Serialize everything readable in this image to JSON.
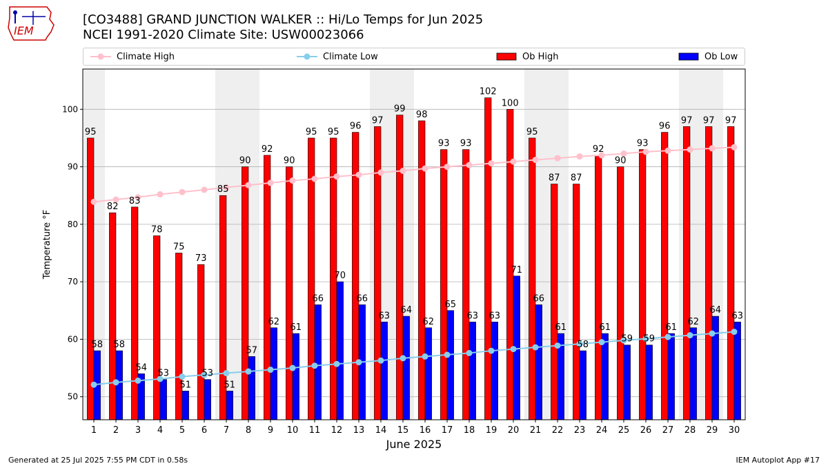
{
  "header": {
    "title_line1": "[CO3488] GRAND JUNCTION WALKER :: Hi/Lo Temps for Jun 2025",
    "title_line2": "NCEI 1991-2020 Climate Site: USW00023066",
    "logo_text": "IEM"
  },
  "legend": {
    "climate_high": "Climate High",
    "climate_low": "Climate Low",
    "ob_high": "Ob High",
    "ob_low": "Ob Low"
  },
  "footer": {
    "generated": "Generated at 25 Jul 2025 7:55 PM CDT in 0.58s",
    "app": "IEM Autoplot App #17"
  },
  "colors": {
    "ob_high": "#ff0000",
    "ob_low": "#0000ff",
    "climate_high": "#ffc0cb",
    "climate_low": "#87ceeb",
    "weekend_band": "#efefef",
    "grid": "#b0b0b0"
  },
  "chart_data": {
    "type": "bar",
    "title": "[CO3488] GRAND JUNCTION WALKER :: Hi/Lo Temps for Jun 2025",
    "subtitle": "NCEI 1991-2020 Climate Site: USW00023066",
    "xlabel": "June 2025",
    "ylabel": "Temperature °F",
    "ylim": [
      46,
      107
    ],
    "yticks": [
      50,
      60,
      70,
      80,
      90,
      100
    ],
    "grid": true,
    "legend_position": "top",
    "categories": [
      "1",
      "2",
      "3",
      "4",
      "5",
      "6",
      "7",
      "8",
      "9",
      "10",
      "11",
      "12",
      "13",
      "14",
      "15",
      "16",
      "17",
      "18",
      "19",
      "20",
      "21",
      "22",
      "23",
      "24",
      "25",
      "26",
      "27",
      "28",
      "29",
      "30"
    ],
    "shaded_days": [
      "1",
      "7",
      "8",
      "14",
      "15",
      "21",
      "22",
      "28",
      "29"
    ],
    "series": [
      {
        "name": "Ob High",
        "kind": "bar",
        "values": [
          95,
          82,
          83,
          78,
          75,
          73,
          85,
          90,
          92,
          90,
          95,
          95,
          96,
          97,
          99,
          98,
          93,
          93,
          102,
          100,
          95,
          87,
          87,
          92,
          90,
          93,
          96,
          97,
          97,
          97
        ]
      },
      {
        "name": "Ob Low",
        "kind": "bar",
        "values": [
          58,
          58,
          54,
          53,
          51,
          53,
          51,
          57,
          62,
          61,
          66,
          70,
          66,
          63,
          64,
          62,
          65,
          63,
          63,
          71,
          66,
          61,
          58,
          61,
          59,
          59,
          61,
          62,
          64,
          63
        ]
      },
      {
        "name": "Climate High",
        "kind": "line",
        "values": [
          83.9,
          84.3,
          84.7,
          85.2,
          85.6,
          86.0,
          86.4,
          86.8,
          87.2,
          87.6,
          87.9,
          88.3,
          88.6,
          89.0,
          89.3,
          89.7,
          90.0,
          90.3,
          90.6,
          90.9,
          91.2,
          91.5,
          91.8,
          92.0,
          92.3,
          92.6,
          92.8,
          93.0,
          93.2,
          93.4
        ]
      },
      {
        "name": "Climate Low",
        "kind": "line",
        "values": [
          52.1,
          52.5,
          52.8,
          53.1,
          53.5,
          53.8,
          54.1,
          54.4,
          54.7,
          55.0,
          55.4,
          55.7,
          56.0,
          56.3,
          56.7,
          57.0,
          57.3,
          57.6,
          58.0,
          58.3,
          58.6,
          58.9,
          59.2,
          59.5,
          59.8,
          60.1,
          60.4,
          60.7,
          61.0,
          61.3
        ]
      }
    ]
  }
}
